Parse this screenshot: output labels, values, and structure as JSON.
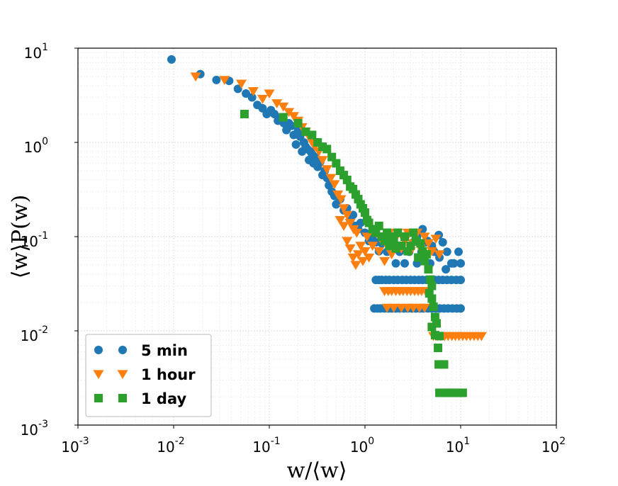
{
  "chart_data": {
    "type": "scatter",
    "title": "",
    "xlabel": "w/⟨w⟩",
    "ylabel": "⟨w⟩P(w)",
    "xscale": "log",
    "yscale": "log",
    "xlim": [
      0.001,
      100
    ],
    "ylim": [
      0.001,
      10
    ],
    "grid": true,
    "legend_position": "bottom-left",
    "x_ticks": [
      {
        "value": 0.001,
        "base": "10",
        "exp": "-3"
      },
      {
        "value": 0.01,
        "base": "10",
        "exp": "-2"
      },
      {
        "value": 0.1,
        "base": "10",
        "exp": "-1"
      },
      {
        "value": 1,
        "base": "10",
        "exp": "0"
      },
      {
        "value": 10,
        "base": "10",
        "exp": "1"
      },
      {
        "value": 100,
        "base": "10",
        "exp": "2"
      }
    ],
    "y_ticks": [
      {
        "value": 0.001,
        "base": "10",
        "exp": "-3"
      },
      {
        "value": 0.01,
        "base": "10",
        "exp": "-2"
      },
      {
        "value": 0.1,
        "base": "10",
        "exp": "-1"
      },
      {
        "value": 1,
        "base": "10",
        "exp": "0"
      },
      {
        "value": 10,
        "base": "10",
        "exp": "1"
      }
    ],
    "series": [
      {
        "name": "5 min",
        "marker": "circle",
        "color": "#1f77b4",
        "points": [
          [
            0.0095,
            7.6
          ],
          [
            0.019,
            5.3
          ],
          [
            0.028,
            4.6
          ],
          [
            0.038,
            4.5
          ],
          [
            0.047,
            3.7
          ],
          [
            0.057,
            3.3
          ],
          [
            0.066,
            3.0
          ],
          [
            0.075,
            2.5
          ],
          [
            0.085,
            2.3
          ],
          [
            0.094,
            2.0
          ],
          [
            0.104,
            2.2
          ],
          [
            0.113,
            2.0
          ],
          [
            0.123,
            1.7
          ],
          [
            0.132,
            1.85
          ],
          [
            0.142,
            1.6
          ],
          [
            0.151,
            1.35
          ],
          [
            0.16,
            1.6
          ],
          [
            0.17,
            1.5
          ],
          [
            0.18,
            1.2
          ],
          [
            0.19,
            0.95
          ],
          [
            0.2,
            1.35
          ],
          [
            0.21,
            1.15
          ],
          [
            0.22,
            0.8
          ],
          [
            0.23,
            1.0
          ],
          [
            0.24,
            0.9
          ],
          [
            0.25,
            0.85
          ],
          [
            0.26,
            0.65
          ],
          [
            0.27,
            0.8
          ],
          [
            0.28,
            0.75
          ],
          [
            0.29,
            0.6
          ],
          [
            0.3,
            0.7
          ],
          [
            0.32,
            0.55
          ],
          [
            0.34,
            0.62
          ],
          [
            0.36,
            0.45
          ],
          [
            0.38,
            0.5
          ],
          [
            0.4,
            0.42
          ],
          [
            0.42,
            0.35
          ],
          [
            0.45,
            0.3
          ],
          [
            0.48,
            0.27
          ],
          [
            0.5,
            0.22
          ],
          [
            0.55,
            0.25
          ],
          [
            0.6,
            0.19
          ],
          [
            0.65,
            0.2
          ],
          [
            0.7,
            0.15
          ],
          [
            0.75,
            0.17
          ],
          [
            0.8,
            0.13
          ],
          [
            0.85,
            0.12
          ],
          [
            0.9,
            0.14
          ],
          [
            1.0,
            0.11
          ],
          [
            1.1,
            0.09
          ],
          [
            1.2,
            0.1
          ],
          [
            1.3,
            0.087
          ],
          [
            1.4,
            0.07
          ],
          [
            1.5,
            0.085
          ],
          [
            1.7,
            0.069
          ],
          [
            1.9,
            0.087
          ],
          [
            2.1,
            0.052
          ],
          [
            2.3,
            0.069
          ],
          [
            2.6,
            0.052
          ],
          [
            2.9,
            0.069
          ],
          [
            3.2,
            0.087
          ],
          [
            3.5,
            0.052
          ],
          [
            3.9,
            0.069
          ],
          [
            4.3,
            0.087
          ],
          [
            4.8,
            0.052
          ],
          [
            5.3,
            0.069
          ],
          [
            5.9,
            0.104
          ],
          [
            6.5,
            0.087
          ],
          [
            7.2,
            0.069
          ],
          [
            8.0,
            0.052
          ],
          [
            1.3,
            0.0347
          ],
          [
            1.4,
            0.0347
          ],
          [
            1.5,
            0.0347
          ],
          [
            1.65,
            0.0347
          ],
          [
            1.8,
            0.0347
          ],
          [
            2.0,
            0.0347
          ],
          [
            2.2,
            0.0347
          ],
          [
            2.45,
            0.0347
          ],
          [
            2.7,
            0.0347
          ],
          [
            3.0,
            0.0347
          ],
          [
            3.3,
            0.0347
          ],
          [
            3.65,
            0.0347
          ],
          [
            4.0,
            0.0347
          ],
          [
            4.4,
            0.0347
          ],
          [
            4.85,
            0.0347
          ],
          [
            5.35,
            0.0347
          ],
          [
            5.9,
            0.0347
          ],
          [
            6.5,
            0.0347
          ],
          [
            7.2,
            0.0347
          ],
          [
            8.0,
            0.0347
          ],
          [
            9.0,
            0.0347
          ],
          [
            1.25,
            0.0173
          ],
          [
            1.35,
            0.0173
          ],
          [
            1.45,
            0.0173
          ],
          [
            1.6,
            0.0173
          ],
          [
            1.75,
            0.0173
          ],
          [
            1.9,
            0.0173
          ],
          [
            2.1,
            0.0173
          ],
          [
            2.3,
            0.0173
          ],
          [
            2.55,
            0.0173
          ],
          [
            2.8,
            0.0173
          ],
          [
            3.1,
            0.0173
          ],
          [
            3.4,
            0.0173
          ],
          [
            3.75,
            0.0173
          ],
          [
            4.1,
            0.0173
          ],
          [
            4.55,
            0.0173
          ],
          [
            5.0,
            0.0173
          ],
          [
            5.5,
            0.0173
          ],
          [
            6.05,
            0.0173
          ],
          [
            6.7,
            0.0173
          ],
          [
            7.4,
            0.0173
          ],
          [
            8.2,
            0.0173
          ],
          [
            9.1,
            0.0173
          ],
          [
            10.0,
            0.0173
          ],
          [
            3.5,
            0.1
          ],
          [
            4.0,
            0.12
          ],
          [
            4.5,
            0.09
          ],
          [
            5.0,
            0.08
          ],
          [
            6.0,
            0.06
          ],
          [
            7.0,
            0.045
          ],
          [
            8.5,
            0.052
          ],
          [
            9.5,
            0.069
          ],
          [
            10.0,
            0.052
          ],
          [
            10.0,
            0.0347
          ]
        ]
      },
      {
        "name": "1 hour",
        "marker": "triangle-down",
        "color": "#ff7f0e",
        "points": [
          [
            0.017,
            5.0
          ],
          [
            0.034,
            4.6
          ],
          [
            0.051,
            4.2
          ],
          [
            0.068,
            3.5
          ],
          [
            0.085,
            2.9
          ],
          [
            0.1,
            3.3
          ],
          [
            0.12,
            2.6
          ],
          [
            0.14,
            2.4
          ],
          [
            0.16,
            2.1
          ],
          [
            0.18,
            1.9
          ],
          [
            0.2,
            1.7
          ],
          [
            0.22,
            1.45
          ],
          [
            0.24,
            1.3
          ],
          [
            0.26,
            1.15
          ],
          [
            0.28,
            1.0
          ],
          [
            0.3,
            0.9
          ],
          [
            0.33,
            0.8
          ],
          [
            0.36,
            0.65
          ],
          [
            0.4,
            0.52
          ],
          [
            0.44,
            0.42
          ],
          [
            0.48,
            0.36
          ],
          [
            0.52,
            0.28
          ],
          [
            0.56,
            0.25
          ],
          [
            0.6,
            0.2
          ],
          [
            0.65,
            0.17
          ],
          [
            0.7,
            0.14
          ],
          [
            0.76,
            0.12
          ],
          [
            0.82,
            0.11
          ],
          [
            0.55,
            0.15
          ],
          [
            0.6,
            0.13
          ],
          [
            0.65,
            0.09
          ],
          [
            0.7,
            0.075
          ],
          [
            0.75,
            0.06
          ],
          [
            0.8,
            0.05
          ],
          [
            0.85,
            0.065
          ],
          [
            0.9,
            0.08
          ],
          [
            0.95,
            0.055
          ],
          [
            1.0,
            0.07
          ],
          [
            1.05,
            0.1
          ],
          [
            1.1,
            0.06
          ],
          [
            1.2,
            0.08
          ],
          [
            1.3,
            0.11
          ],
          [
            1.4,
            0.07
          ],
          [
            1.5,
            0.09
          ],
          [
            1.6,
            0.055
          ],
          [
            1.7,
            0.08
          ],
          [
            1.8,
            0.11
          ],
          [
            1.9,
            0.065
          ],
          [
            2.0,
            0.09
          ],
          [
            2.2,
            0.11
          ],
          [
            2.4,
            0.075
          ],
          [
            2.6,
            0.09
          ],
          [
            2.8,
            0.11
          ],
          [
            3.0,
            0.07
          ],
          [
            3.2,
            0.085
          ],
          [
            3.5,
            0.11
          ],
          [
            3.8,
            0.075
          ],
          [
            4.2,
            0.1
          ],
          [
            4.6,
            0.085
          ],
          [
            5.0,
            0.07
          ],
          [
            5.5,
            0.095
          ],
          [
            6.0,
            0.065
          ],
          [
            1.6,
            0.0264
          ],
          [
            1.75,
            0.0264
          ],
          [
            1.9,
            0.0264
          ],
          [
            2.1,
            0.0264
          ],
          [
            2.3,
            0.0264
          ],
          [
            2.5,
            0.0264
          ],
          [
            2.75,
            0.0264
          ],
          [
            3.0,
            0.0264
          ],
          [
            3.3,
            0.0264
          ],
          [
            3.6,
            0.0264
          ],
          [
            3.9,
            0.0264
          ],
          [
            4.3,
            0.0264
          ],
          [
            4.7,
            0.0264
          ],
          [
            1.7,
            0.0176
          ],
          [
            2.0,
            0.0176
          ],
          [
            2.4,
            0.0176
          ],
          [
            2.8,
            0.0176
          ],
          [
            3.2,
            0.0176
          ],
          [
            3.7,
            0.0176
          ],
          [
            4.2,
            0.0176
          ],
          [
            5.2,
            0.0088
          ],
          [
            5.7,
            0.0088
          ],
          [
            6.2,
            0.0088
          ],
          [
            6.8,
            0.0088
          ],
          [
            7.4,
            0.0088
          ],
          [
            8.1,
            0.0088
          ],
          [
            8.8,
            0.0088
          ],
          [
            9.6,
            0.0088
          ],
          [
            10.5,
            0.0088
          ],
          [
            11.5,
            0.0088
          ],
          [
            12.6,
            0.0088
          ],
          [
            13.8,
            0.0088
          ],
          [
            15.1,
            0.0088
          ],
          [
            16.5,
            0.0088
          ]
        ]
      },
      {
        "name": "1 day",
        "marker": "square",
        "color": "#2ca02c",
        "points": [
          [
            0.055,
            2.0
          ],
          [
            0.14,
            1.85
          ],
          [
            0.2,
            1.6
          ],
          [
            0.24,
            1.3
          ],
          [
            0.28,
            1.2
          ],
          [
            0.32,
            1.0
          ],
          [
            0.36,
            0.9
          ],
          [
            0.4,
            0.85
          ],
          [
            0.45,
            0.7
          ],
          [
            0.5,
            0.6
          ],
          [
            0.55,
            0.5
          ],
          [
            0.6,
            0.45
          ],
          [
            0.65,
            0.4
          ],
          [
            0.7,
            0.34
          ],
          [
            0.75,
            0.32
          ],
          [
            0.8,
            0.28
          ],
          [
            0.85,
            0.25
          ],
          [
            0.9,
            0.22
          ],
          [
            0.95,
            0.2
          ],
          [
            1.0,
            0.18
          ],
          [
            1.05,
            0.15
          ],
          [
            1.1,
            0.14
          ],
          [
            1.2,
            0.12
          ],
          [
            1.3,
            0.11
          ],
          [
            1.4,
            0.13
          ],
          [
            1.5,
            0.1
          ],
          [
            1.6,
            0.09
          ],
          [
            1.7,
            0.11
          ],
          [
            1.8,
            0.08
          ],
          [
            1.9,
            0.1
          ],
          [
            2.0,
            0.09
          ],
          [
            2.1,
            0.075
          ],
          [
            2.2,
            0.11
          ],
          [
            2.4,
            0.08
          ],
          [
            2.6,
            0.1
          ],
          [
            2.8,
            0.07
          ],
          [
            3.0,
            0.08
          ],
          [
            3.2,
            0.11
          ],
          [
            3.4,
            0.09
          ],
          [
            3.6,
            0.06
          ],
          [
            3.8,
            0.085
          ],
          [
            4.0,
            0.07
          ],
          [
            4.2,
            0.055
          ],
          [
            4.4,
            0.065
          ],
          [
            4.6,
            0.045
          ],
          [
            4.8,
            0.035
          ],
          [
            5.0,
            0.03
          ],
          [
            4.7,
            0.025
          ],
          [
            5.0,
            0.022
          ],
          [
            5.2,
            0.018
          ],
          [
            5.4,
            0.014
          ],
          [
            5.6,
            0.012
          ],
          [
            5.0,
            0.011
          ],
          [
            5.4,
            0.009
          ],
          [
            6.0,
            0.0088
          ],
          [
            5.8,
            0.0066
          ],
          [
            5.9,
            0.0044
          ],
          [
            6.7,
            0.0044
          ],
          [
            6.0,
            0.0022
          ],
          [
            6.8,
            0.0022
          ],
          [
            7.6,
            0.0022
          ],
          [
            8.5,
            0.0022
          ],
          [
            9.5,
            0.0022
          ],
          [
            10.5,
            0.0022
          ]
        ]
      }
    ]
  }
}
